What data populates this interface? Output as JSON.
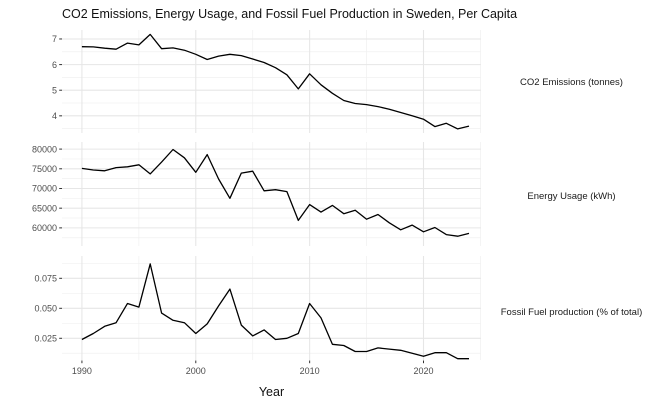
{
  "title": "CO2 Emissions, Energy Usage, and Fossil Fuel Production in Sweden, Per Capita",
  "x_axis": {
    "label": "Year",
    "major_ticks": [
      1990,
      2000,
      2010,
      2020
    ],
    "minor_ticks": [
      1995,
      2005,
      2015,
      2025
    ],
    "range": [
      1988.25,
      2025.05
    ]
  },
  "colors": {
    "line": "#000000",
    "grid_major": "#e6e6e6",
    "grid_minor": "#f0f0f0",
    "tick_mark": "#333333",
    "tick_text": "#4d4d4d",
    "text": "#1a1a1a",
    "background": "#ffffff"
  },
  "chart_data": [
    {
      "type": "line",
      "label": "CO2 Emissions (tonnes)",
      "ylabel": "CO2 Emissions (tonnes)",
      "x": [
        1990,
        1991,
        1992,
        1993,
        1994,
        1995,
        1996,
        1997,
        1998,
        1999,
        2000,
        2001,
        2002,
        2003,
        2004,
        2005,
        2006,
        2007,
        2008,
        2009,
        2010,
        2011,
        2012,
        2013,
        2014,
        2015,
        2016,
        2017,
        2018,
        2019,
        2020,
        2021,
        2022,
        2023,
        2024
      ],
      "values": [
        6.7,
        6.69,
        6.64,
        6.6,
        6.84,
        6.77,
        7.18,
        6.62,
        6.65,
        6.56,
        6.4,
        6.2,
        6.33,
        6.4,
        6.35,
        6.22,
        6.08,
        5.88,
        5.6,
        5.05,
        5.64,
        5.21,
        4.88,
        4.6,
        4.48,
        4.44,
        4.36,
        4.26,
        4.13,
        4.0,
        3.87,
        3.58,
        3.71,
        3.49,
        3.6
      ],
      "yticks": [
        4,
        5,
        6,
        7
      ],
      "ytick_labels": [
        "4",
        "5",
        "6",
        "7"
      ],
      "yminor": [
        3.5,
        4.5,
        5.5,
        6.5
      ],
      "ylim": [
        3.33,
        7.35
      ],
      "grid": true
    },
    {
      "type": "line",
      "label": "Energy Usage (kWh)",
      "ylabel": "Energy Usage (kWh)",
      "x": [
        1990,
        1991,
        1992,
        1993,
        1994,
        1995,
        1996,
        1997,
        1998,
        1999,
        2000,
        2001,
        2002,
        2003,
        2004,
        2005,
        2006,
        2007,
        2008,
        2009,
        2010,
        2011,
        2012,
        2013,
        2014,
        2015,
        2016,
        2017,
        2018,
        2019,
        2020,
        2021,
        2022,
        2023,
        2024
      ],
      "values": [
        75100,
        74700,
        74500,
        75300,
        75500,
        76000,
        73700,
        76700,
        79900,
        77800,
        74100,
        78600,
        72400,
        67500,
        73900,
        74400,
        69400,
        69700,
        69200,
        61900,
        65900,
        64000,
        65700,
        63600,
        64500,
        62200,
        63400,
        61300,
        59500,
        60700,
        59000,
        60100,
        58300,
        57900,
        58600
      ],
      "yticks": [
        60000,
        65000,
        70000,
        75000,
        80000
      ],
      "ytick_labels": [
        "60000",
        "65000",
        "70000",
        "75000",
        "80000"
      ],
      "yminor": [
        57500,
        62500,
        67500,
        72500,
        77500
      ],
      "ylim": [
        55400,
        81800
      ],
      "grid": true
    },
    {
      "type": "line",
      "label": "Fossil Fuel production (% of total)",
      "ylabel": "Fossil Fuel production (% of total)",
      "x": [
        1990,
        1991,
        1992,
        1993,
        1994,
        1995,
        1996,
        1997,
        1998,
        1999,
        2000,
        2001,
        2002,
        2003,
        2004,
        2005,
        2006,
        2007,
        2008,
        2009,
        2010,
        2011,
        2012,
        2013,
        2014,
        2015,
        2016,
        2017,
        2018,
        2019,
        2020,
        2021,
        2022,
        2023,
        2024
      ],
      "values": [
        0.024,
        0.029,
        0.035,
        0.038,
        0.054,
        0.051,
        0.087,
        0.046,
        0.04,
        0.038,
        0.029,
        0.037,
        0.052,
        0.066,
        0.036,
        0.027,
        0.032,
        0.024,
        0.025,
        0.029,
        0.054,
        0.042,
        0.02,
        0.019,
        0.014,
        0.014,
        0.017,
        0.016,
        0.015,
        0.0125,
        0.01,
        0.013,
        0.013,
        0.008,
        0.008
      ],
      "yticks": [
        0.025,
        0.05,
        0.075
      ],
      "ytick_labels": [
        "0.025",
        "0.050",
        "0.075"
      ],
      "yminor": [
        0.0125,
        0.0375,
        0.0625,
        0.0875
      ],
      "ylim": [
        0.0069,
        0.0936
      ],
      "grid": true
    }
  ]
}
